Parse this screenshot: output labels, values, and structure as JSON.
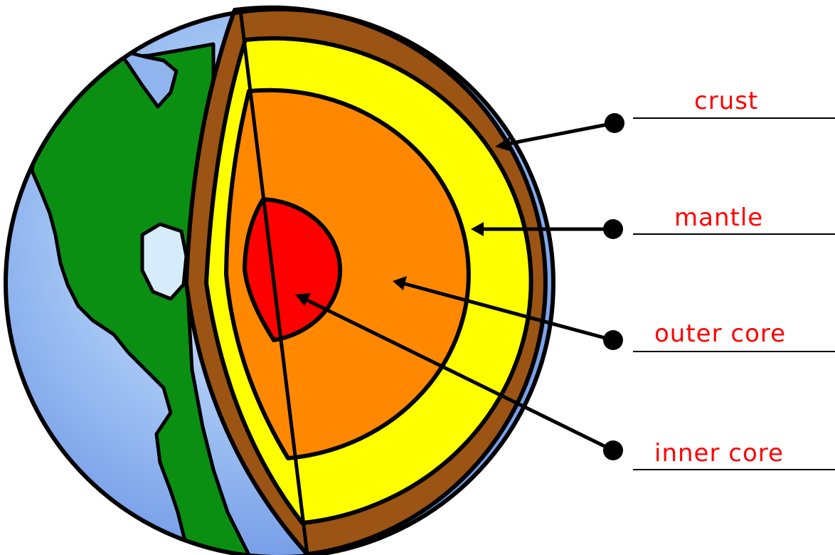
{
  "labels": {
    "crust": "crust",
    "mantle": "mantle",
    "outer_core": "outer core",
    "inner_core": "inner core"
  },
  "colors": {
    "ocean": "#8fb4ee",
    "land": "#0a8f12",
    "crust": "#9b5413",
    "mantle": "#ffff00",
    "outer_core": "#ff8800",
    "inner_core": "#ff0000",
    "label_text": "#ff0000",
    "outline": "#000000"
  }
}
